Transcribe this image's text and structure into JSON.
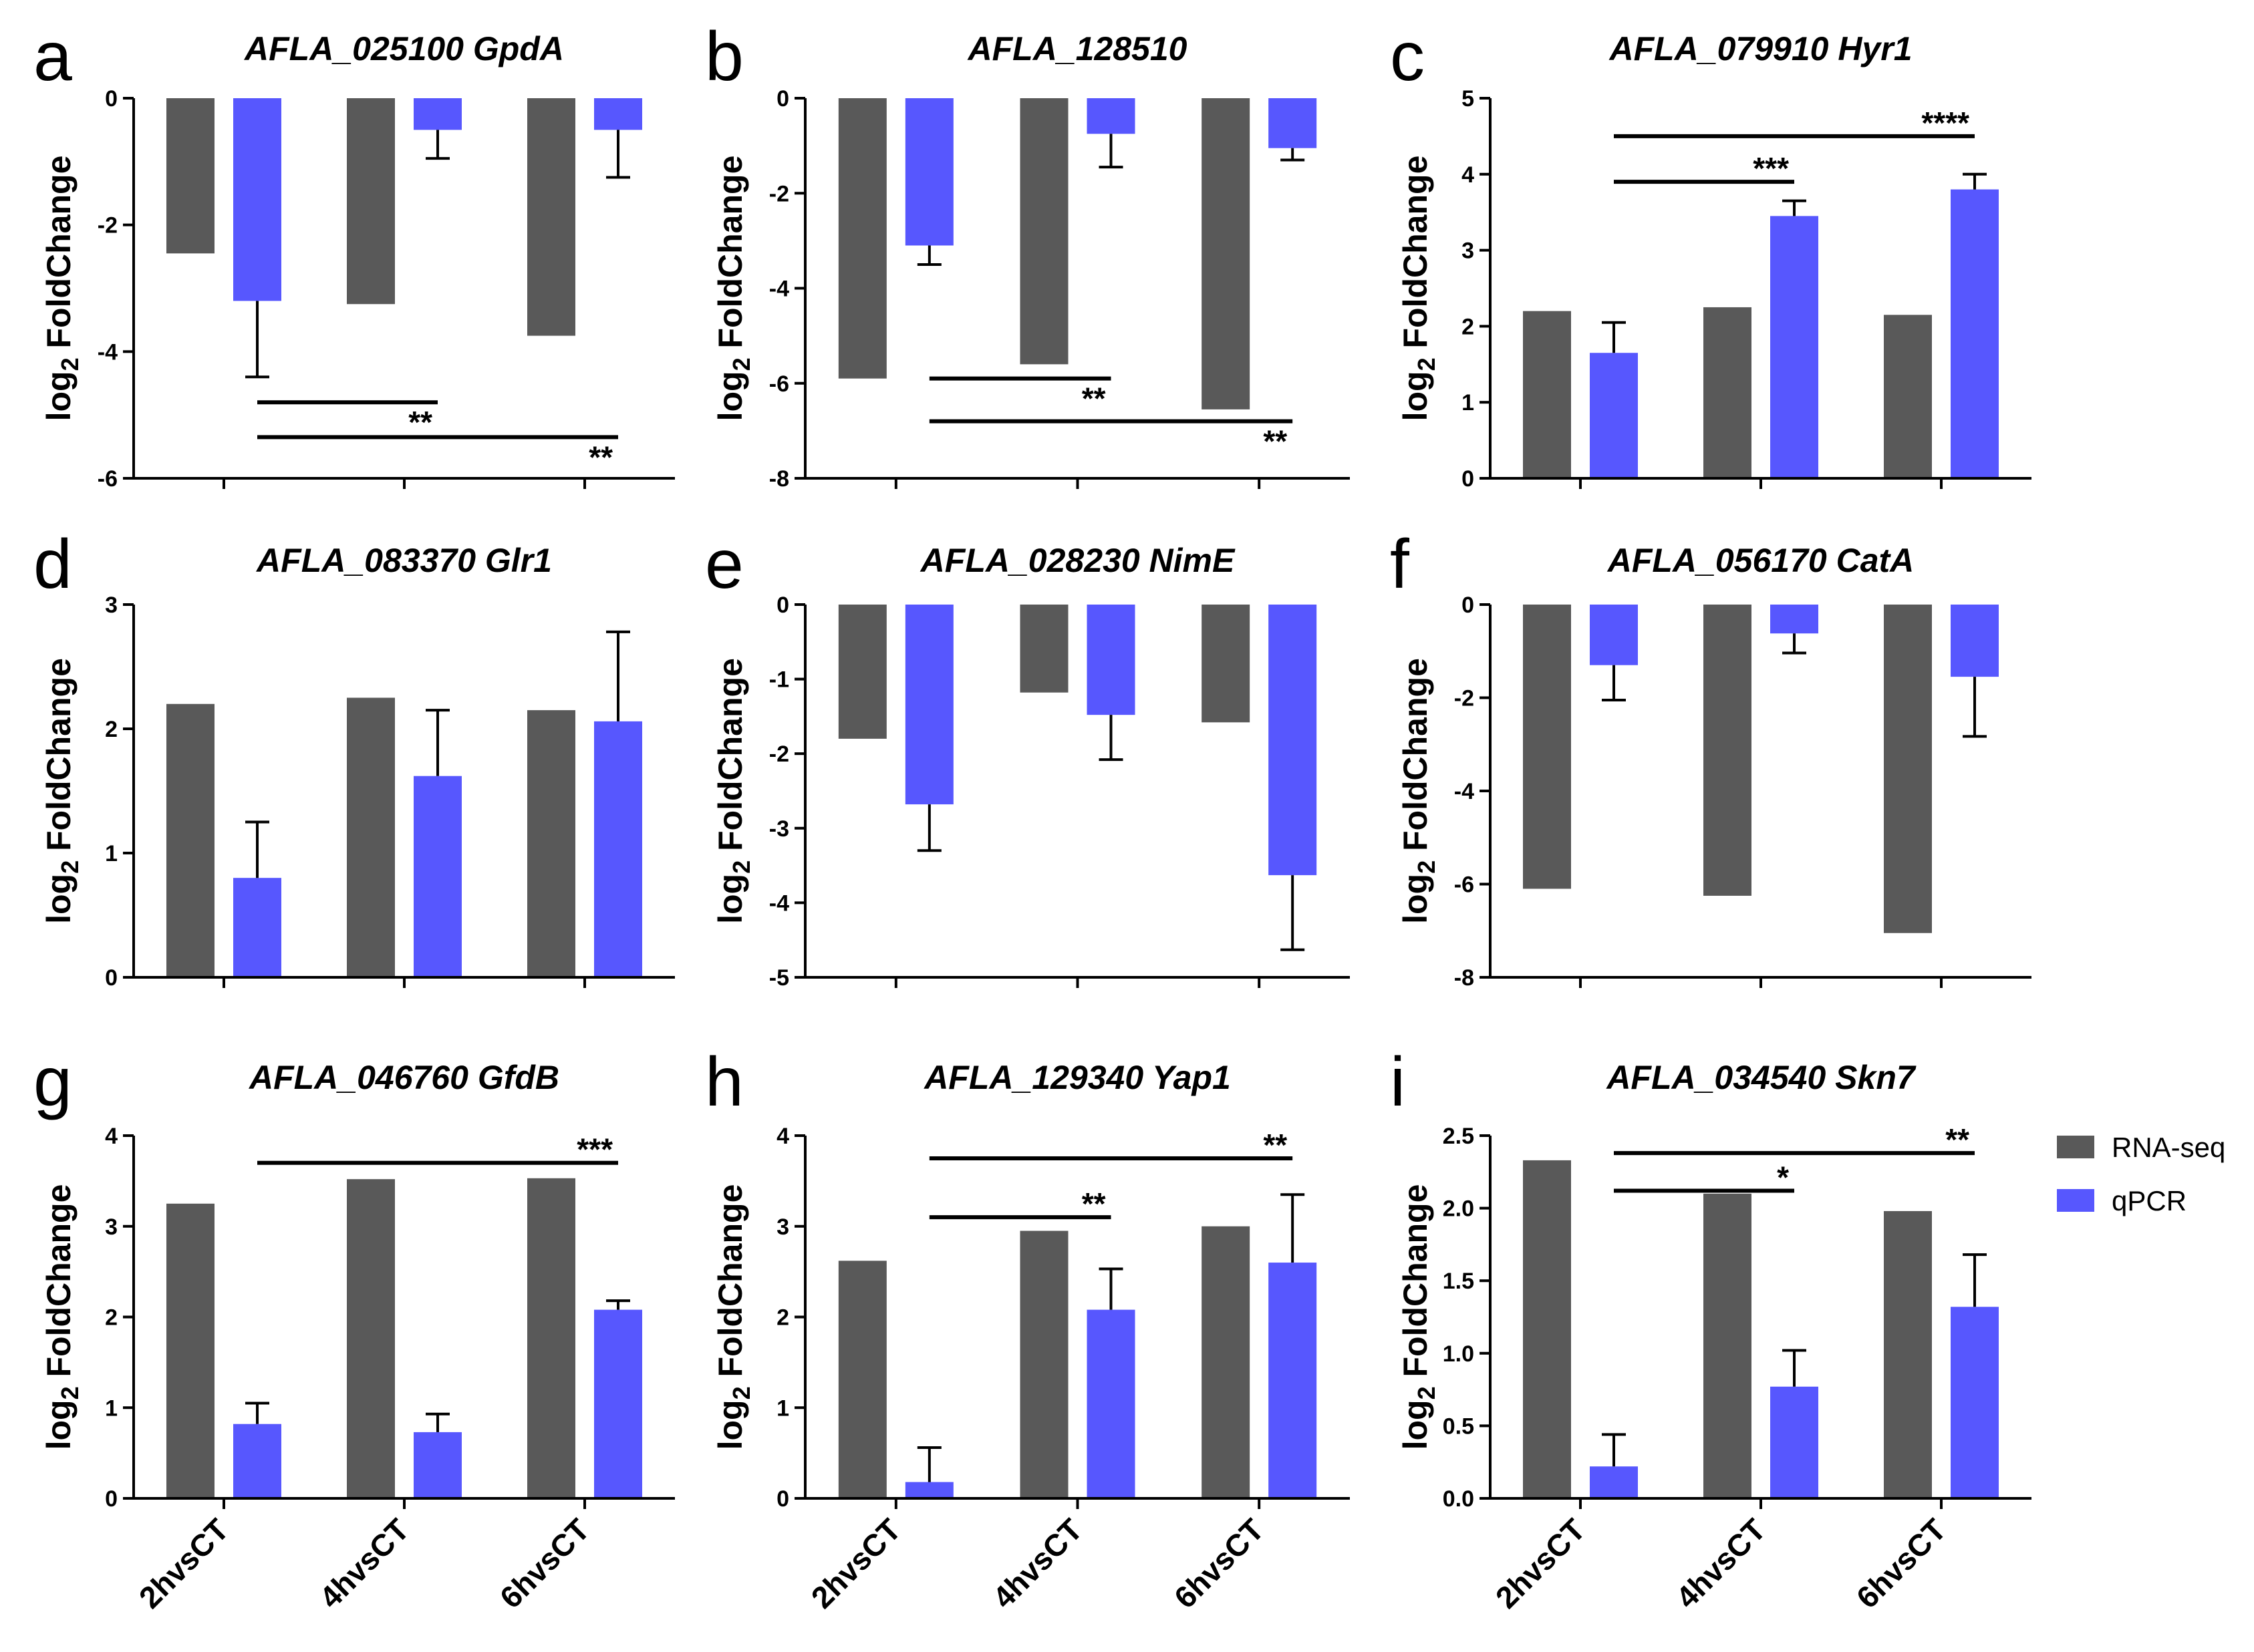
{
  "chart_data": [
    {
      "panel": "a",
      "type": "bar",
      "title": "AFLA_025100 GpdA",
      "ylabel": "log2 FoldChange",
      "ylim": [
        -6,
        0
      ],
      "yticks": [
        0,
        -2,
        -4,
        -6
      ],
      "ytick_labels": [
        "0",
        "-2",
        "-4",
        "-6"
      ],
      "categories": [
        "2hvsCT",
        "4hvsCT",
        "6hvsCT"
      ],
      "show_categories": false,
      "series": [
        {
          "name": "RNA-seq",
          "values": [
            -2.45,
            -3.25,
            -3.75
          ]
        },
        {
          "name": "qPCR",
          "values": [
            -3.2,
            -0.5,
            -0.5
          ],
          "errors": [
            1.2,
            0.45,
            0.75
          ]
        }
      ],
      "significance": [
        {
          "from": 0,
          "to": 1,
          "label": "**",
          "y": -4.8
        },
        {
          "from": 0,
          "to": 2,
          "label": "**",
          "y": -5.35
        }
      ]
    },
    {
      "panel": "b",
      "type": "bar",
      "title": "AFLA_128510",
      "ylabel": "log2 FoldChange",
      "ylim": [
        -8,
        0
      ],
      "yticks": [
        0,
        -2,
        -4,
        -6,
        -8
      ],
      "ytick_labels": [
        "0",
        "-2",
        "-4",
        "-6",
        "-8"
      ],
      "categories": [
        "2hvsCT",
        "4hvsCT",
        "6hvsCT"
      ],
      "show_categories": false,
      "series": [
        {
          "name": "RNA-seq",
          "values": [
            -5.9,
            -5.6,
            -6.55
          ]
        },
        {
          "name": "qPCR",
          "values": [
            -3.1,
            -0.75,
            -1.05
          ],
          "errors": [
            0.4,
            0.7,
            0.25
          ]
        }
      ],
      "significance": [
        {
          "from": 0,
          "to": 1,
          "label": "**",
          "y": -5.9
        },
        {
          "from": 0,
          "to": 2,
          "label": "**",
          "y": -6.8
        }
      ]
    },
    {
      "panel": "c",
      "type": "bar",
      "title": "AFLA_079910 Hyr1",
      "ylabel": "log2 FoldChange",
      "ylim": [
        0,
        5
      ],
      "yticks": [
        0,
        1,
        2,
        3,
        4,
        5
      ],
      "ytick_labels": [
        "0",
        "1",
        "2",
        "3",
        "4",
        "5"
      ],
      "categories": [
        "2hvsCT",
        "4hvsCT",
        "6hvsCT"
      ],
      "show_categories": false,
      "series": [
        {
          "name": "RNA-seq",
          "values": [
            2.2,
            2.25,
            2.15
          ]
        },
        {
          "name": "qPCR",
          "values": [
            1.65,
            3.45,
            3.8
          ],
          "errors": [
            0.4,
            0.2,
            0.2
          ]
        }
      ],
      "significance": [
        {
          "from": 0,
          "to": 1,
          "label": "***",
          "y": 3.9
        },
        {
          "from": 0,
          "to": 2,
          "label": "****",
          "y": 4.5
        }
      ]
    },
    {
      "panel": "d",
      "type": "bar",
      "title": "AFLA_083370 Glr1",
      "ylabel": "log2 FoldChange",
      "ylim": [
        0,
        3
      ],
      "yticks": [
        0,
        1,
        2,
        3
      ],
      "ytick_labels": [
        "0",
        "1",
        "2",
        "3"
      ],
      "categories": [
        "2hvsCT",
        "4hvsCT",
        "6hvsCT"
      ],
      "show_categories": false,
      "series": [
        {
          "name": "RNA-seq",
          "values": [
            2.2,
            2.25,
            2.15
          ]
        },
        {
          "name": "qPCR",
          "values": [
            0.8,
            1.62,
            2.06
          ],
          "errors": [
            0.45,
            0.53,
            0.72
          ]
        }
      ],
      "significance": []
    },
    {
      "panel": "e",
      "type": "bar",
      "title": "AFLA_028230 NimE",
      "ylabel": "log2 FoldChange",
      "ylim": [
        -5,
        0
      ],
      "yticks": [
        0,
        -1,
        -2,
        -3,
        -4,
        -5
      ],
      "ytick_labels": [
        "0",
        "-1",
        "-2",
        "-3",
        "-4",
        "-5"
      ],
      "categories": [
        "2hvsCT",
        "4hvsCT",
        "6hvsCT"
      ],
      "show_categories": false,
      "series": [
        {
          "name": "RNA-seq",
          "values": [
            -1.8,
            -1.18,
            -1.58
          ]
        },
        {
          "name": "qPCR",
          "values": [
            -2.68,
            -1.48,
            -3.63
          ],
          "errors": [
            0.62,
            0.6,
            1.0
          ]
        }
      ],
      "significance": []
    },
    {
      "panel": "f",
      "type": "bar",
      "title": "AFLA_056170 CatA",
      "ylabel": "log2 FoldChange",
      "ylim": [
        -8,
        0
      ],
      "yticks": [
        0,
        -2,
        -4,
        -6,
        -8
      ],
      "ytick_labels": [
        "0",
        "-2",
        "-4",
        "-6",
        "-8"
      ],
      "categories": [
        "2hvsCT",
        "4hvsCT",
        "6hvsCT"
      ],
      "show_categories": false,
      "series": [
        {
          "name": "RNA-seq",
          "values": [
            -6.1,
            -6.25,
            -7.05
          ]
        },
        {
          "name": "qPCR",
          "values": [
            -1.3,
            -0.62,
            -1.55
          ],
          "errors": [
            0.75,
            0.42,
            1.28
          ]
        }
      ],
      "significance": []
    },
    {
      "panel": "g",
      "type": "bar",
      "title": "AFLA_046760 GfdB",
      "ylabel": "log2 FoldChange",
      "ylim": [
        0,
        4
      ],
      "yticks": [
        0,
        1,
        2,
        3,
        4
      ],
      "ytick_labels": [
        "0",
        "1",
        "2",
        "3",
        "4"
      ],
      "categories": [
        "2hvsCT",
        "4hvsCT",
        "6hvsCT"
      ],
      "show_categories": true,
      "series": [
        {
          "name": "RNA-seq",
          "values": [
            3.25,
            3.52,
            3.53
          ]
        },
        {
          "name": "qPCR",
          "values": [
            0.82,
            0.73,
            2.08
          ],
          "errors": [
            0.23,
            0.2,
            0.1
          ]
        }
      ],
      "significance": [
        {
          "from": 0,
          "to": 2,
          "label": "***",
          "y": 3.7
        }
      ]
    },
    {
      "panel": "h",
      "type": "bar",
      "title": "AFLA_129340 Yap1",
      "ylabel": "log2 FoldChange",
      "ylim": [
        0,
        4
      ],
      "yticks": [
        0,
        1,
        2,
        3,
        4
      ],
      "ytick_labels": [
        "0",
        "1",
        "2",
        "3",
        "4"
      ],
      "categories": [
        "2hvsCT",
        "4hvsCT",
        "6hvsCT"
      ],
      "show_categories": true,
      "series": [
        {
          "name": "RNA-seq",
          "values": [
            2.62,
            2.95,
            3.0
          ]
        },
        {
          "name": "qPCR",
          "values": [
            0.18,
            2.08,
            2.6
          ],
          "errors": [
            0.38,
            0.45,
            0.75
          ]
        }
      ],
      "significance": [
        {
          "from": 0,
          "to": 1,
          "label": "**",
          "y": 3.1
        },
        {
          "from": 0,
          "to": 2,
          "label": "**",
          "y": 3.75
        }
      ]
    },
    {
      "panel": "i",
      "type": "bar",
      "title": "AFLA_034540 Skn7",
      "ylabel": "log2 FoldChange",
      "ylim": [
        0,
        2.5
      ],
      "yticks": [
        0,
        0.5,
        1.0,
        1.5,
        2.0,
        2.5
      ],
      "ytick_labels": [
        "0.0",
        "0.5",
        "1.0",
        "1.5",
        "2.0",
        "2.5"
      ],
      "categories": [
        "2hvsCT",
        "4hvsCT",
        "6hvsCT"
      ],
      "show_categories": true,
      "series": [
        {
          "name": "RNA-seq",
          "values": [
            2.33,
            2.1,
            1.98
          ]
        },
        {
          "name": "qPCR",
          "values": [
            0.22,
            0.77,
            1.32
          ],
          "errors": [
            0.22,
            0.25,
            0.36
          ]
        }
      ],
      "significance": [
        {
          "from": 0,
          "to": 1,
          "label": "*",
          "y": 2.12
        },
        {
          "from": 0,
          "to": 2,
          "label": "**",
          "y": 2.38
        }
      ]
    }
  ],
  "legend": {
    "items": [
      {
        "label": "RNA-seq",
        "color": "#595959"
      },
      {
        "label": "qPCR",
        "color": "#5757fe"
      }
    ]
  },
  "colors": {
    "rna_seq": "#595959",
    "qpcr": "#5757fe",
    "axis": "#000000"
  }
}
